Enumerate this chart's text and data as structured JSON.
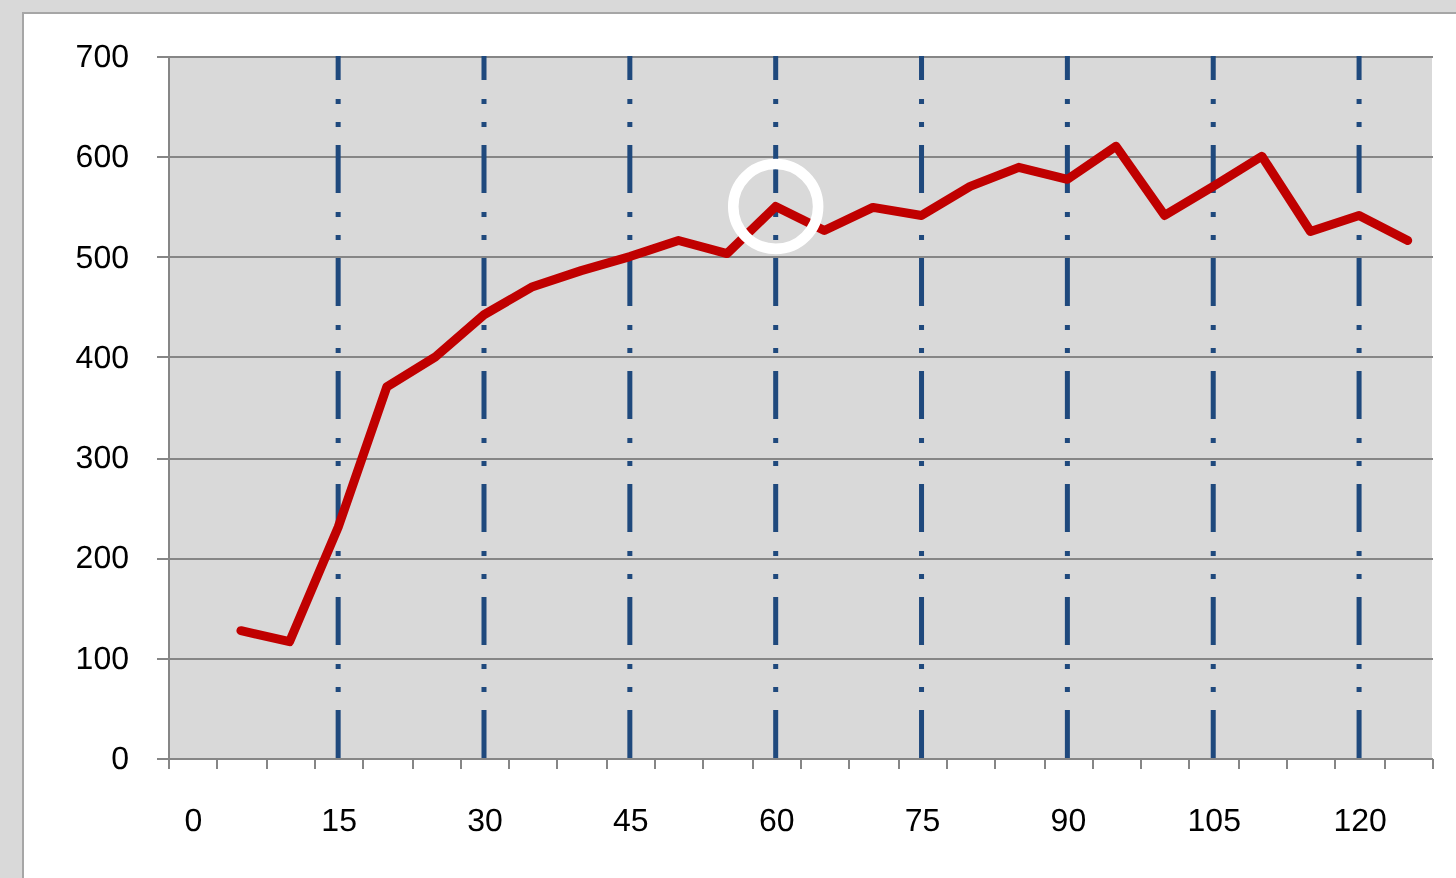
{
  "chart_data": {
    "type": "line",
    "categories": [
      "0",
      null,
      null,
      "15",
      null,
      null,
      "30",
      null,
      null,
      "45",
      null,
      null,
      "60",
      null,
      null,
      "75",
      null,
      null,
      "90",
      null,
      null,
      "105",
      null,
      null,
      "120",
      null
    ],
    "series": [
      {
        "type": "line",
        "color": "#c00000",
        "values": [
          null,
          127,
          116,
          230,
          370,
          400,
          442,
          470,
          486,
          500,
          516,
          503,
          550,
          526,
          549,
          541,
          570,
          589,
          577,
          610,
          541,
          570,
          600,
          525,
          541,
          516
        ]
      },
      {
        "type": "scatter",
        "color": "#ffffff",
        "x": [
          "60"
        ],
        "values": [
          550
        ],
        "marker": "circle"
      }
    ],
    "ylim": [
      0,
      700
    ],
    "yticks": [
      0,
      100,
      200,
      300,
      400,
      500,
      600,
      700
    ],
    "grid": "y",
    "ref_lines": [
      {
        "axis": "x",
        "value": "15",
        "color": "#1f497d",
        "line_style": "dashed"
      },
      {
        "axis": "x",
        "value": "30",
        "color": "#1f497d",
        "line_style": "dashed"
      },
      {
        "axis": "x",
        "value": "45",
        "color": "#1f497d",
        "line_style": "dashed"
      },
      {
        "axis": "x",
        "value": "60",
        "color": "#1f497d",
        "line_style": "dashed"
      },
      {
        "axis": "x",
        "value": "75",
        "color": "#1f497d",
        "line_style": "dashed"
      },
      {
        "axis": "x",
        "value": "90",
        "color": "#1f497d",
        "line_style": "dashed"
      },
      {
        "axis": "x",
        "value": "105",
        "color": "#1f497d",
        "line_style": "dashed"
      },
      {
        "axis": "x",
        "value": "120",
        "color": "#1f497d",
        "line_style": "dashed"
      }
    ]
  }
}
